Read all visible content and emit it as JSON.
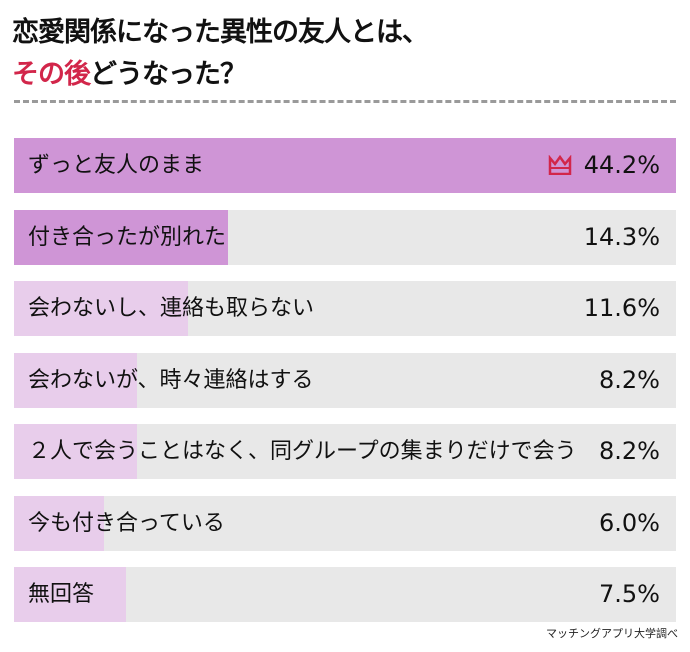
{
  "title": {
    "line1": "恋愛関係になった異性の友人とは、",
    "line2_accent": "その後",
    "line2_rest": "どうなった？"
  },
  "colors": {
    "top": "#cf95d6",
    "other": "#e8cdeb",
    "track": "#e8e8e8",
    "accent": "#d2264a"
  },
  "chart_data": {
    "type": "bar",
    "orientation": "horizontal",
    "title": "恋愛関係になった異性の友人とは、その後どうなった？",
    "categories": [
      "ずっと友人のまま",
      "付き合ったが別れた",
      "会わないし、連絡も取らない",
      "会わないが、時々連絡はする",
      "２人で会うことはなく、同グループの集まりだけで会う",
      "今も付き合っている",
      "無回答"
    ],
    "values": [
      44.2,
      14.3,
      11.6,
      8.2,
      8.2,
      6.0,
      7.5
    ],
    "value_labels": [
      "44.2%",
      "14.3%",
      "11.6%",
      "8.2%",
      "8.2%",
      "6.0%",
      "7.5%"
    ],
    "unit": "%",
    "xlim": [
      0,
      44.2
    ],
    "highlight": [
      true,
      true,
      false,
      false,
      false,
      false,
      false
    ],
    "top_icon": "crown-icon"
  },
  "source": "マッチングアプリ大学調べ"
}
